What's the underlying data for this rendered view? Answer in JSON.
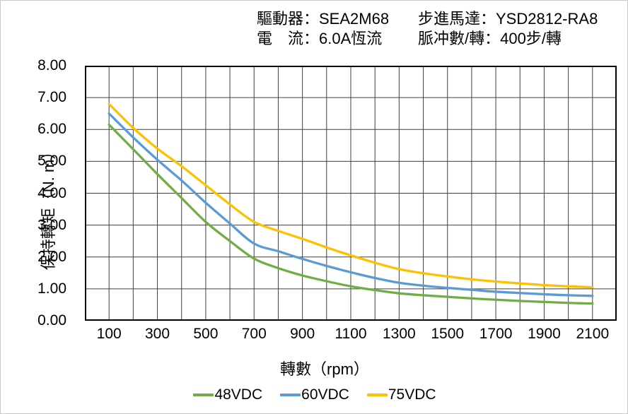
{
  "header": {
    "driver": "驅動器：SEA2M68",
    "current": "電　流：6.0A恆流",
    "motor": "步進馬達：YSD2812-RA8",
    "pulses": "脈冲數/轉：400步/轉"
  },
  "colors": {
    "background": "#ffffff",
    "grid": "#404040",
    "axis_border": "#000000",
    "series_48vdc": "#70AD47",
    "series_60vdc": "#5B9BD5",
    "series_75vdc": "#FFC000"
  },
  "chart_data": {
    "type": "line",
    "title": "",
    "xlabel": "轉數（rpm）",
    "ylabel": "保持轉矩（N. m）",
    "xlim": [
      0,
      2200
    ],
    "ylim": [
      0,
      8
    ],
    "x_gridline_step": 100,
    "y_gridline_step": 1,
    "grid": true,
    "legend_position": "bottom",
    "xticks": [
      100,
      300,
      500,
      700,
      900,
      1100,
      1300,
      1500,
      1700,
      1900,
      2100
    ],
    "xtick_labels": [
      "100",
      "300",
      "500",
      "700",
      "900",
      "1100",
      "1300",
      "1500",
      "1700",
      "1900",
      "2100"
    ],
    "ytick_labels": [
      "8.00",
      "7.00",
      "6.00",
      "5.00",
      "4.00",
      "3.00",
      "2.00",
      "1.00",
      "0.00"
    ],
    "x": [
      100,
      200,
      300,
      400,
      500,
      600,
      700,
      800,
      900,
      1000,
      1100,
      1200,
      1300,
      1400,
      1500,
      1600,
      1700,
      1800,
      1900,
      2000,
      2100
    ],
    "series": [
      {
        "name": "48VDC",
        "color": "#70AD47",
        "values": [
          6.15,
          5.38,
          4.6,
          3.85,
          3.1,
          2.5,
          1.95,
          1.65,
          1.42,
          1.24,
          1.08,
          0.96,
          0.86,
          0.8,
          0.75,
          0.7,
          0.66,
          0.62,
          0.59,
          0.56,
          0.54
        ]
      },
      {
        "name": "60VDC",
        "color": "#5B9BD5",
        "values": [
          6.5,
          5.75,
          5.05,
          4.4,
          3.7,
          3.05,
          2.42,
          2.18,
          1.94,
          1.72,
          1.52,
          1.34,
          1.19,
          1.1,
          1.03,
          0.97,
          0.91,
          0.87,
          0.83,
          0.8,
          0.78
        ]
      },
      {
        "name": "75VDC",
        "color": "#FFC000",
        "values": [
          6.8,
          6.05,
          5.4,
          4.85,
          4.25,
          3.65,
          3.1,
          2.82,
          2.57,
          2.3,
          2.05,
          1.82,
          1.62,
          1.49,
          1.39,
          1.3,
          1.23,
          1.17,
          1.12,
          1.08,
          1.05
        ]
      }
    ]
  }
}
